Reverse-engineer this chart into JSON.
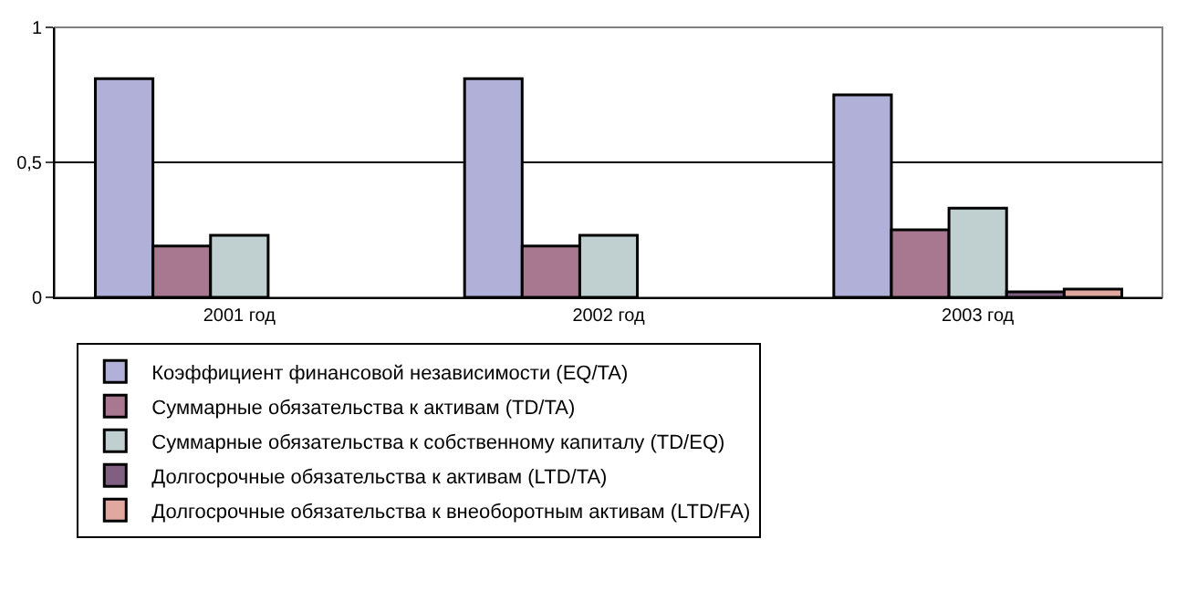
{
  "chart_data": {
    "type": "bar",
    "categories": [
      "2001 год",
      "2002 год",
      "2003 год"
    ],
    "series": [
      {
        "name": "Коэффициент финансовой независимости (EQ/TA)",
        "color": "#b0b0d8",
        "values": [
          0.81,
          0.81,
          0.75
        ]
      },
      {
        "name": "Суммарные обязательства к активам (TD/TA)",
        "color": "#a87890",
        "values": [
          0.19,
          0.19,
          0.25
        ]
      },
      {
        "name": "Суммарные обязательства к собственному капиталу (TD/EQ)",
        "color": "#c0d0d0",
        "values": [
          0.23,
          0.23,
          0.33
        ]
      },
      {
        "name": "Долгосрочные обязательства к активам (LTD/TA)",
        "color": "#806080",
        "values": [
          null,
          null,
          0.02
        ]
      },
      {
        "name": "Долгосрочные обязательства к внеоборотным активам (LTD/FA)",
        "color": "#e0a8a0",
        "values": [
          null,
          null,
          0.03
        ]
      }
    ],
    "ylim": [
      0,
      1
    ],
    "yticks": [
      0,
      {
        "value": 0.5,
        "label": "0,5"
      },
      1
    ],
    "grid": "y",
    "legend": "bottom"
  }
}
